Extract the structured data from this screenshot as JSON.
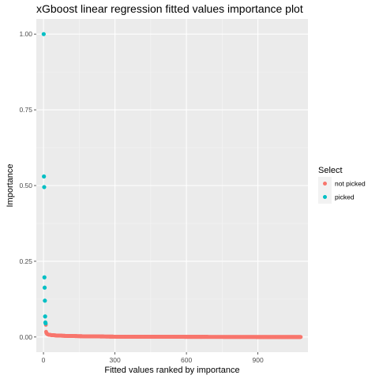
{
  "chart_data": {
    "type": "scatter",
    "title": "xGboost linear regression fitted values importance plot",
    "xlabel": "Fitted values ranked by importance",
    "ylabel": "Importance",
    "xlim": [
      -30,
      1110
    ],
    "ylim": [
      -0.05,
      1.05
    ],
    "x_ticks": [
      0,
      300,
      600,
      900
    ],
    "x_tick_labels": [
      "0",
      "300",
      "600",
      "900"
    ],
    "y_ticks": [
      0,
      0.25,
      0.5,
      0.75,
      1.0
    ],
    "y_tick_labels": [
      "0.00",
      "0.25",
      "0.50",
      "0.75",
      "1.00"
    ],
    "grid": true,
    "legend": {
      "title": "Select",
      "position": "right",
      "entries": [
        {
          "label": "not picked",
          "color": "#F8766D"
        },
        {
          "label": "picked",
          "color": "#00BFC4"
        }
      ]
    },
    "series": [
      {
        "name": "picked",
        "color": "#00BFC4",
        "x": [
          1,
          2,
          3,
          4,
          5,
          6,
          7,
          8,
          9
        ],
        "y": [
          1.0,
          0.53,
          0.495,
          0.197,
          0.163,
          0.12,
          0.068,
          0.048,
          0.045
        ]
      },
      {
        "name": "not picked",
        "color": "#F8766D",
        "x_range": [
          10,
          1080
        ],
        "y": [
          0.04,
          0.026,
          0.02,
          0.017,
          0.015,
          0.013,
          0.012,
          0.011,
          0.01,
          0.009,
          0.008,
          0.0075,
          0.007,
          0.0065,
          0.006,
          0.0055,
          0.005,
          0.0045,
          0.004,
          0.0035,
          0.003,
          0.0025,
          0.002,
          0.0015,
          0.001,
          0.0008,
          0.0005,
          0.0003,
          0.0001,
          0.0
        ]
      }
    ]
  }
}
